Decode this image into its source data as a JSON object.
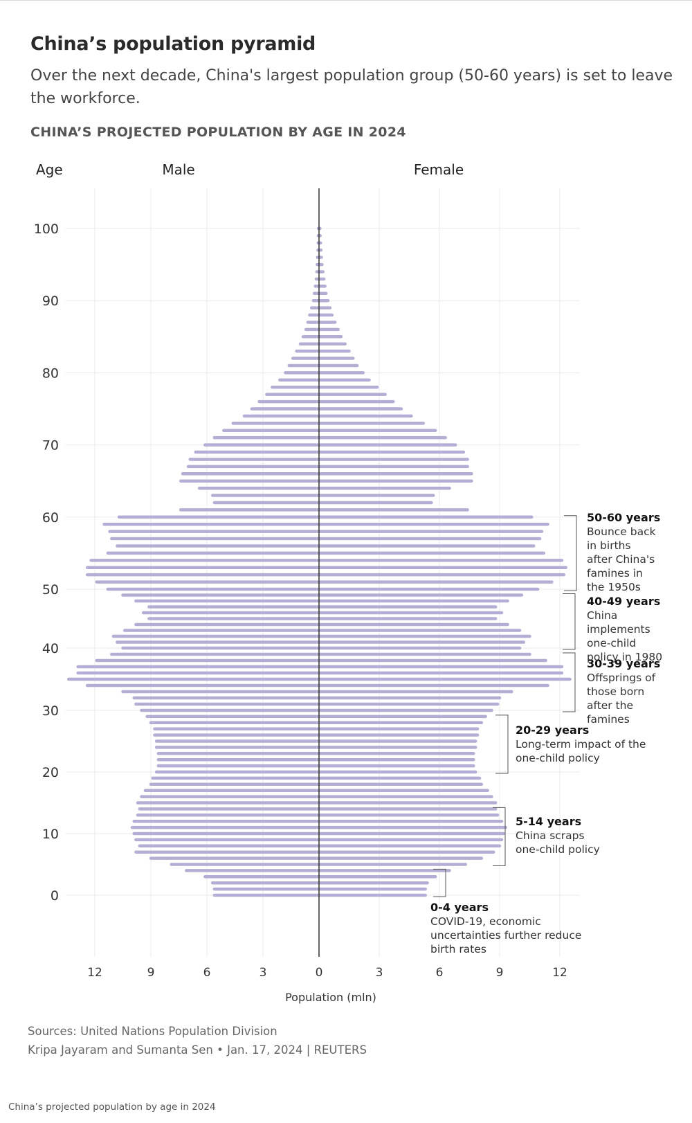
{
  "header": {
    "title": "China’s population pyramid",
    "subtitle": "Over the next decade, China's largest population group (50-60 years) is set to leave the workforce.",
    "chart_title": "CHINA’S PROJECTED POPULATION BY AGE IN 2024"
  },
  "footer": {
    "sources": "Sources: United Nations Population Division",
    "byline": "Kripa Jayaram and Sumanta Sen • Jan. 17, 2024 | REUTERS",
    "caption": "China’s projected population by age in 2024"
  },
  "colors": {
    "bar": "#b3aed3",
    "axis": "#333333",
    "grid": "#ebebeb",
    "bracket": "#555555"
  },
  "chart_data": {
    "type": "bar",
    "orientation": "horizontal",
    "subtype": "population-pyramid",
    "title": "CHINA’S PROJECTED POPULATION BY AGE IN 2024",
    "ylabel": "Age",
    "xlabel": "Population (mln)",
    "left_label": "Male",
    "right_label": "Female",
    "y_ticks": [
      0,
      10,
      20,
      30,
      40,
      50,
      60,
      70,
      80,
      90,
      100
    ],
    "x_ticks_left": [
      "12",
      "9",
      "6",
      "3"
    ],
    "x_ticks_center": "0",
    "x_ticks_right": [
      "3",
      "6",
      "9",
      "12"
    ],
    "xlim": [
      0,
      14
    ],
    "grid": true,
    "ages": [
      0,
      1,
      2,
      3,
      4,
      5,
      6,
      7,
      8,
      9,
      10,
      11,
      12,
      13,
      14,
      15,
      16,
      17,
      18,
      19,
      20,
      21,
      22,
      23,
      24,
      25,
      26,
      27,
      28,
      29,
      30,
      31,
      32,
      33,
      34,
      35,
      36,
      37,
      38,
      39,
      40,
      41,
      42,
      43,
      44,
      45,
      46,
      47,
      48,
      49,
      50,
      51,
      52,
      53,
      54,
      55,
      56,
      57,
      58,
      59,
      60,
      61,
      62,
      63,
      64,
      65,
      66,
      67,
      68,
      69,
      70,
      71,
      72,
      73,
      74,
      75,
      76,
      77,
      78,
      79,
      80,
      81,
      82,
      83,
      84,
      85,
      86,
      87,
      88,
      89,
      90,
      91,
      92,
      93,
      94,
      95,
      96,
      97,
      98,
      99,
      100
    ],
    "series": [
      {
        "name": "Male",
        "values": [
          5.6,
          5.6,
          5.7,
          6.1,
          7.1,
          7.9,
          9.0,
          9.8,
          9.6,
          9.8,
          9.9,
          10.0,
          9.9,
          9.7,
          9.6,
          9.7,
          9.5,
          9.3,
          9.0,
          8.9,
          8.7,
          8.6,
          8.6,
          8.6,
          8.7,
          8.7,
          8.8,
          8.8,
          9.0,
          9.2,
          9.5,
          9.8,
          9.9,
          10.5,
          12.4,
          13.4,
          12.9,
          12.9,
          11.9,
          11.1,
          10.5,
          10.8,
          11.0,
          10.4,
          9.8,
          9.1,
          9.4,
          9.1,
          9.8,
          10.5,
          11.3,
          11.9,
          12.4,
          12.4,
          12.2,
          11.3,
          10.8,
          11.1,
          11.2,
          11.5,
          10.7,
          7.4,
          5.6,
          5.7,
          6.4,
          7.4,
          7.3,
          7.0,
          6.9,
          6.6,
          6.1,
          5.6,
          5.1,
          4.6,
          4.0,
          3.6,
          3.2,
          2.8,
          2.5,
          2.1,
          1.8,
          1.6,
          1.4,
          1.2,
          1.0,
          0.85,
          0.7,
          0.6,
          0.5,
          0.4,
          0.3,
          0.25,
          0.2,
          0.15,
          0.12,
          0.1,
          0.08,
          0.06,
          0.05,
          0.04,
          0.03
        ]
      },
      {
        "name": "Female",
        "values": [
          5.3,
          5.3,
          5.4,
          5.8,
          6.5,
          7.3,
          8.1,
          8.7,
          9.0,
          9.1,
          9.2,
          9.3,
          9.1,
          8.9,
          8.8,
          8.8,
          8.6,
          8.4,
          8.1,
          8.0,
          7.8,
          7.7,
          7.7,
          7.7,
          7.8,
          7.8,
          7.9,
          7.9,
          8.1,
          8.3,
          8.6,
          8.9,
          9.0,
          9.6,
          11.4,
          12.5,
          12.1,
          12.1,
          11.3,
          10.5,
          10.0,
          10.2,
          10.5,
          10.0,
          9.4,
          8.8,
          9.1,
          8.8,
          9.4,
          10.1,
          10.9,
          11.6,
          12.2,
          12.3,
          12.1,
          11.2,
          10.7,
          11.0,
          11.1,
          11.4,
          10.6,
          7.4,
          5.6,
          5.7,
          6.5,
          7.6,
          7.6,
          7.4,
          7.4,
          7.2,
          6.8,
          6.3,
          5.8,
          5.2,
          4.6,
          4.1,
          3.7,
          3.3,
          2.9,
          2.5,
          2.2,
          1.9,
          1.7,
          1.5,
          1.3,
          1.1,
          0.95,
          0.8,
          0.65,
          0.55,
          0.45,
          0.35,
          0.3,
          0.25,
          0.2,
          0.15,
          0.12,
          0.1,
          0.08,
          0.06,
          0.05
        ]
      }
    ],
    "annotations": [
      {
        "range": [
          0,
          4
        ],
        "label": "0-4 years",
        "text": "COVID-19, economic uncertainties further reduce birth rates"
      },
      {
        "range": [
          5,
          14
        ],
        "label": "5-14 years",
        "text": "China scraps one-child policy"
      },
      {
        "range": [
          20,
          29
        ],
        "label": "20-29 years",
        "text": "Long-term impact of the one-child policy"
      },
      {
        "range": [
          30,
          39
        ],
        "label": "30-39 years",
        "text": "Offsprings of those born after the famines"
      },
      {
        "range": [
          40,
          49
        ],
        "label": "40-49 years",
        "text": "China implements one-child policy in 1980"
      },
      {
        "range": [
          50,
          60
        ],
        "label": "50-60 years",
        "text": "Bounce back in births after China's famines in the 1950s"
      }
    ]
  }
}
